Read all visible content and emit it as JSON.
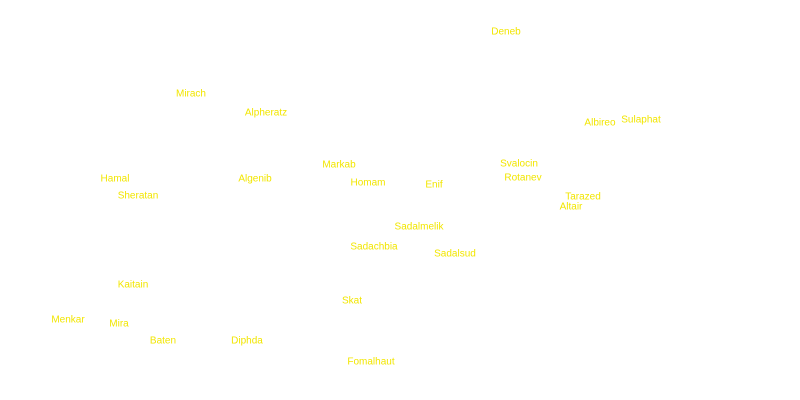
{
  "stars": [
    "Deneb",
    "Mirach",
    "Alpheratz",
    "Albireo",
    "Sulaphat",
    "Markab",
    "Svalocin",
    "Hamal",
    "Algenib",
    "Homam",
    "Rotanev",
    "Enif",
    "Sheratan",
    "Tarazed",
    "Altair",
    "Sadalmelik",
    "Sadachbia",
    "Sadalsud",
    "Kaitain",
    "Skat",
    "Menkar",
    "Mira",
    "Baten",
    "Diphda",
    "Fomalhaut"
  ]
}
